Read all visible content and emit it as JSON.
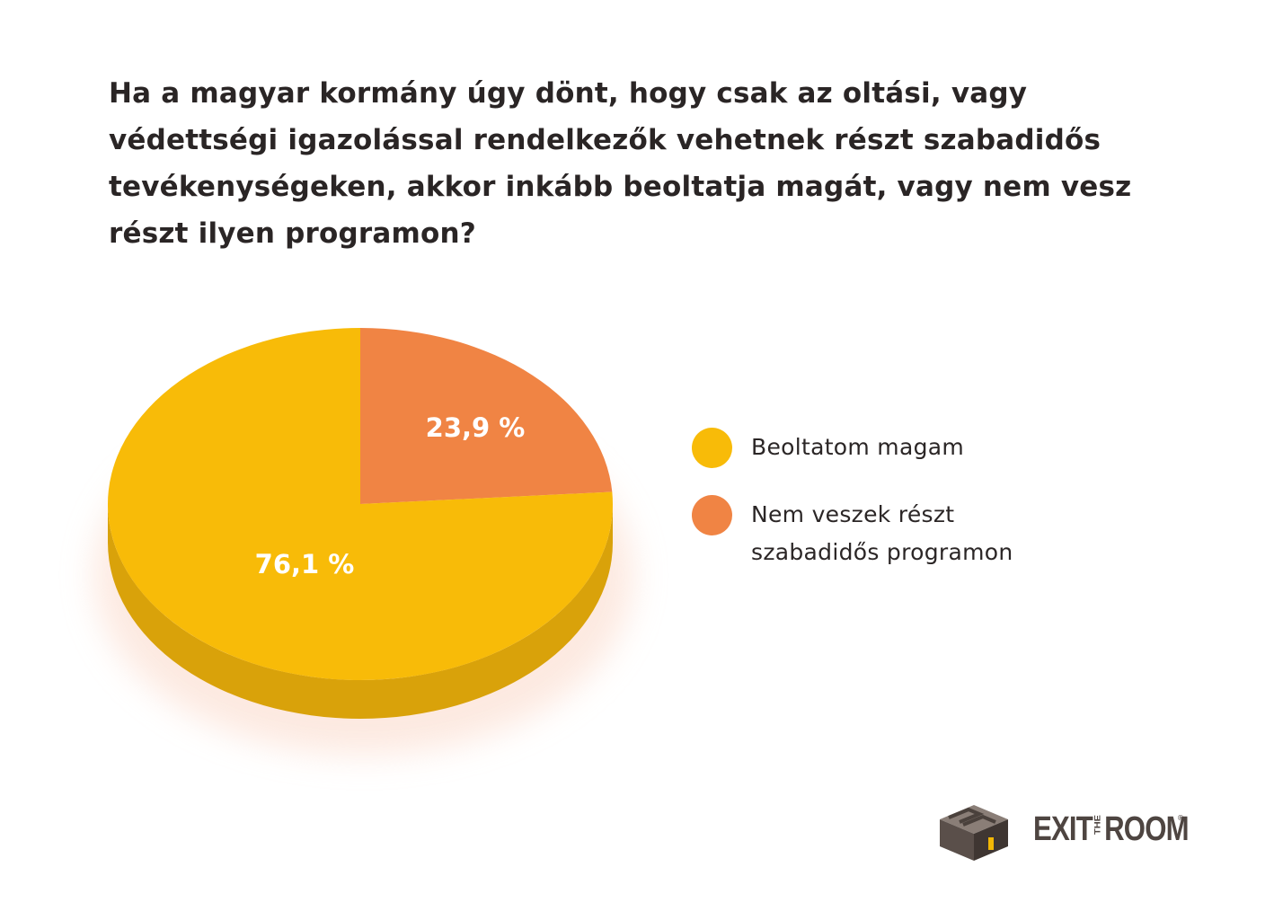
{
  "chart_data": {
    "type": "pie",
    "title": "Ha a magyar kormány úgy dönt, hogy csak az oltási, vagy védettségi igazolással rendelkezők vehetnek részt szabadidős tevékenységeken, akkor inkább beoltatja magát, vagy nem vesz részt ilyen programon?",
    "series": [
      {
        "name": "Beoltatom magam",
        "value": 76.1,
        "label": "76,1 %",
        "color": "#f8bb08",
        "side_color": "#d9a20a"
      },
      {
        "name": "Nem veszek részt\nszabadidős programon",
        "value": 23.9,
        "label": "23,9 %",
        "color": "#f08444",
        "side_color": "#d26f35"
      }
    ],
    "legend_position": "right"
  },
  "logo": {
    "text_exit": "EXIT",
    "text_the": "THE",
    "text_room": "ROOM",
    "reg": "®",
    "icon": "maze-cube-icon"
  }
}
